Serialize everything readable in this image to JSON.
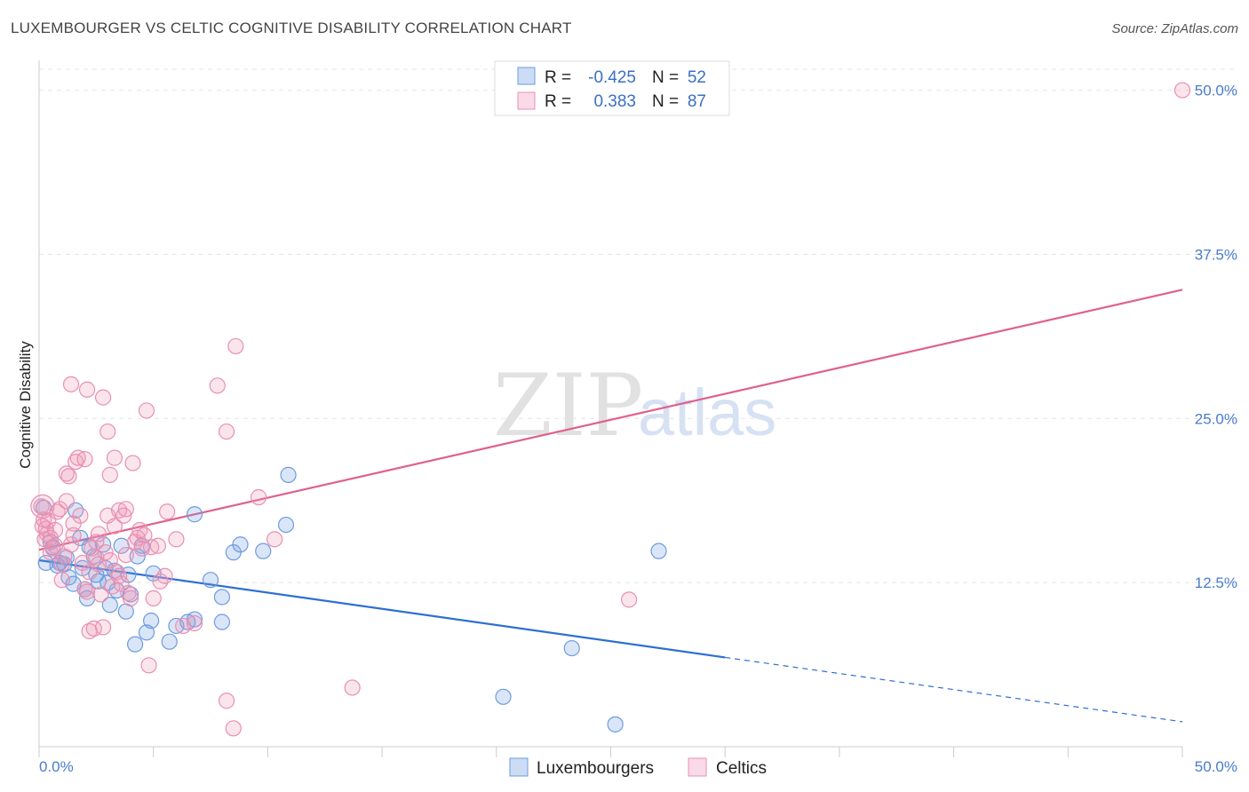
{
  "header": {
    "title": "LUXEMBOURGER VS CELTIC COGNITIVE DISABILITY CORRELATION CHART",
    "source": "Source: ZipAtlas.com"
  },
  "watermark": {
    "part1": "ZIP",
    "part2": "atlas"
  },
  "chart_data": {
    "type": "scatter",
    "ylabel": "Cognitive Disability",
    "xlim": [
      0,
      50
    ],
    "ylim": [
      0,
      52
    ],
    "x_tick_labels": {
      "min": "0.0%",
      "max": "50.0%"
    },
    "y_ticks": [
      {
        "value": 12.5,
        "label": "12.5%"
      },
      {
        "value": 25.0,
        "label": "25.0%"
      },
      {
        "value": 37.5,
        "label": "37.5%"
      },
      {
        "value": 50.0,
        "label": "50.0%"
      }
    ],
    "legend": {
      "r_label": "R =",
      "n_label": "N =",
      "entries": [
        {
          "r": "-0.425",
          "n": "52"
        },
        {
          "r": "0.383",
          "n": "87"
        }
      ]
    },
    "series": [
      {
        "name": "Luxembourgers",
        "color": "#6d9be0",
        "fill": "rgba(109,155,224,0.25)",
        "trend": {
          "x0": 0,
          "y0": 14.2,
          "x1": 30,
          "y1": 6.8,
          "dash_to_x": 50,
          "dash_to_y": 1.9,
          "color": "#2f6fd0"
        },
        "points": [
          [
            0.2,
            18.2
          ],
          [
            0.3,
            14.0
          ],
          [
            0.5,
            15.6
          ],
          [
            0.6,
            15.2
          ],
          [
            0.8,
            13.8
          ],
          [
            0.9,
            14.0
          ],
          [
            1.1,
            13.9
          ],
          [
            1.2,
            14.4
          ],
          [
            1.3,
            12.9
          ],
          [
            1.5,
            12.4
          ],
          [
            1.6,
            18.0
          ],
          [
            1.8,
            15.9
          ],
          [
            1.9,
            13.6
          ],
          [
            2.0,
            12.0
          ],
          [
            2.1,
            11.3
          ],
          [
            2.2,
            15.2
          ],
          [
            2.4,
            14.5
          ],
          [
            2.5,
            13.1
          ],
          [
            2.6,
            12.6
          ],
          [
            2.8,
            15.4
          ],
          [
            2.9,
            13.6
          ],
          [
            3.0,
            12.5
          ],
          [
            3.1,
            10.8
          ],
          [
            3.3,
            13.4
          ],
          [
            3.4,
            11.9
          ],
          [
            3.6,
            15.3
          ],
          [
            3.8,
            10.3
          ],
          [
            3.9,
            13.1
          ],
          [
            4.0,
            11.6
          ],
          [
            4.2,
            7.8
          ],
          [
            4.3,
            14.5
          ],
          [
            4.5,
            15.3
          ],
          [
            4.7,
            8.7
          ],
          [
            4.9,
            9.6
          ],
          [
            5.0,
            13.2
          ],
          [
            5.7,
            8.0
          ],
          [
            6.0,
            9.2
          ],
          [
            6.5,
            9.5
          ],
          [
            6.8,
            9.7
          ],
          [
            6.8,
            17.7
          ],
          [
            7.5,
            12.7
          ],
          [
            8.0,
            11.4
          ],
          [
            8.0,
            9.5
          ],
          [
            8.5,
            14.8
          ],
          [
            8.8,
            15.4
          ],
          [
            9.8,
            14.9
          ],
          [
            10.8,
            16.9
          ],
          [
            10.9,
            20.7
          ],
          [
            20.3,
            3.8
          ],
          [
            23.3,
            7.5
          ],
          [
            25.2,
            1.7
          ],
          [
            27.1,
            14.9
          ]
        ]
      },
      {
        "name": "Celtics",
        "color": "#e890b0",
        "fill": "rgba(240,150,185,0.25)",
        "trend": {
          "x0": 0,
          "y0": 15.0,
          "x1": 50,
          "y1": 34.8,
          "color": "#e0608c"
        },
        "points": [
          [
            0.1,
            18.3
          ],
          [
            0.15,
            16.8
          ],
          [
            0.2,
            17.3
          ],
          [
            0.25,
            15.8
          ],
          [
            0.3,
            16.6
          ],
          [
            0.35,
            16.2
          ],
          [
            0.4,
            17.2
          ],
          [
            0.5,
            15.9
          ],
          [
            0.6,
            15.1
          ],
          [
            0.7,
            16.5
          ],
          [
            0.8,
            17.9
          ],
          [
            0.9,
            18.1
          ],
          [
            1.0,
            13.9
          ],
          [
            1.0,
            12.7
          ],
          [
            1.1,
            14.5
          ],
          [
            1.2,
            18.7
          ],
          [
            1.2,
            20.8
          ],
          [
            1.3,
            20.6
          ],
          [
            1.4,
            15.4
          ],
          [
            1.4,
            27.6
          ],
          [
            1.5,
            16.1
          ],
          [
            1.6,
            21.7
          ],
          [
            1.7,
            22.0
          ],
          [
            1.8,
            17.6
          ],
          [
            1.9,
            14.0
          ],
          [
            2.0,
            21.9
          ],
          [
            2.0,
            12.0
          ],
          [
            2.1,
            27.2
          ],
          [
            2.1,
            11.8
          ],
          [
            2.2,
            8.8
          ],
          [
            2.3,
            15.1
          ],
          [
            2.4,
            9.0
          ],
          [
            2.5,
            15.6
          ],
          [
            2.5,
            14.4
          ],
          [
            2.6,
            13.9
          ],
          [
            2.7,
            11.6
          ],
          [
            2.8,
            9.1
          ],
          [
            2.9,
            14.8
          ],
          [
            2.8,
            26.6
          ],
          [
            3.0,
            17.6
          ],
          [
            3.0,
            24.0
          ],
          [
            3.1,
            20.7
          ],
          [
            3.1,
            14.2
          ],
          [
            3.2,
            12.2
          ],
          [
            3.3,
            16.8
          ],
          [
            3.3,
            22.0
          ],
          [
            3.4,
            13.3
          ],
          [
            3.5,
            18.0
          ],
          [
            3.6,
            12.4
          ],
          [
            3.7,
            17.6
          ],
          [
            3.8,
            18.1
          ],
          [
            3.8,
            14.6
          ],
          [
            3.9,
            11.7
          ],
          [
            4.0,
            11.3
          ],
          [
            4.1,
            21.6
          ],
          [
            4.2,
            15.6
          ],
          [
            4.3,
            15.9
          ],
          [
            4.5,
            15.1
          ],
          [
            4.6,
            16.1
          ],
          [
            4.7,
            25.6
          ],
          [
            4.8,
            6.2
          ],
          [
            4.9,
            15.2
          ],
          [
            5.0,
            11.3
          ],
          [
            5.2,
            15.3
          ],
          [
            5.3,
            12.6
          ],
          [
            5.6,
            17.9
          ],
          [
            6.0,
            15.8
          ],
          [
            6.3,
            9.2
          ],
          [
            6.8,
            9.4
          ],
          [
            7.8,
            27.5
          ],
          [
            8.2,
            24.0
          ],
          [
            8.2,
            3.5
          ],
          [
            8.6,
            30.5
          ],
          [
            8.5,
            1.4
          ],
          [
            9.6,
            19.0
          ],
          [
            10.3,
            15.8
          ],
          [
            13.7,
            4.5
          ],
          [
            25.8,
            11.2
          ],
          [
            50.0,
            50.0
          ],
          [
            0.5,
            14.8
          ],
          [
            0.7,
            15.3
          ],
          [
            1.5,
            17.0
          ],
          [
            2.2,
            13.3
          ],
          [
            2.6,
            16.2
          ],
          [
            3.5,
            13.0
          ],
          [
            4.4,
            16.5
          ],
          [
            5.5,
            13.0
          ]
        ]
      }
    ]
  }
}
